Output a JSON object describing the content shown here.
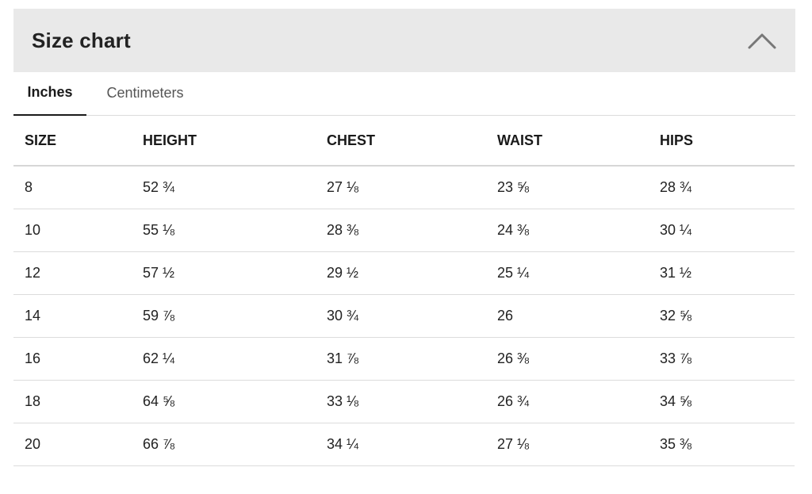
{
  "header": {
    "title": "Size chart",
    "toggle_icon": "chevron-up-icon"
  },
  "tabs": [
    {
      "label": "Inches",
      "active": true
    },
    {
      "label": "Centimeters",
      "active": false
    }
  ],
  "table": {
    "columns": [
      "SIZE",
      "HEIGHT",
      "CHEST",
      "WAIST",
      "HIPS"
    ],
    "rows": [
      [
        "8",
        "52 ¾",
        "27 ⅛",
        "23 ⅝",
        "28 ¾"
      ],
      [
        "10",
        "55 ⅛",
        "28 ⅜",
        "24 ⅜",
        "30 ¼"
      ],
      [
        "12",
        "57 ½",
        "29 ½",
        "25 ¼",
        "31 ½"
      ],
      [
        "14",
        "59 ⅞",
        "30 ¾",
        "26",
        "32 ⅝"
      ],
      [
        "16",
        "62 ¼",
        "31 ⅞",
        "26 ⅜",
        "33 ⅞"
      ],
      [
        "18",
        "64 ⅝",
        "33 ⅛",
        "26 ¾",
        "34 ⅝"
      ],
      [
        "20",
        "66 ⅞",
        "34 ¼",
        "27 ⅛",
        "35 ⅜"
      ]
    ]
  },
  "colors": {
    "header_bg": "#e9e9e9",
    "text": "#1a1a1a",
    "divider": "#dcdcdc",
    "chevron": "#777777"
  }
}
